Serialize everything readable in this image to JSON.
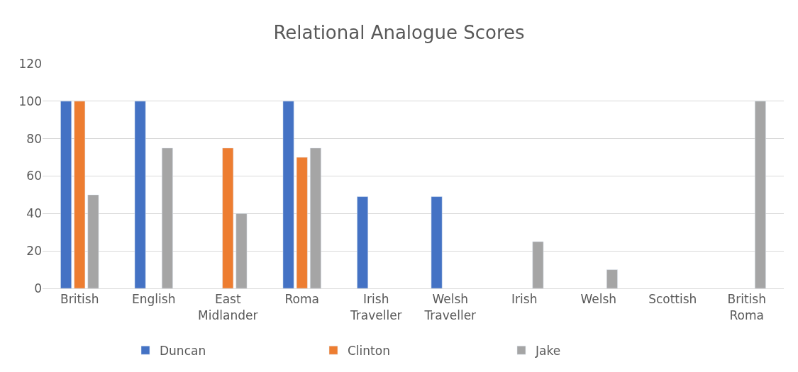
{
  "chart_data": {
    "type": "bar",
    "title": "Relational Analogue Scores",
    "categories": [
      "British",
      "English",
      "East Midlander",
      "Roma",
      "Irish Traveller",
      "Welsh Traveller",
      "Irish",
      "Welsh",
      "Scottish",
      "British Roma"
    ],
    "series": [
      {
        "name": "Duncan",
        "color": "#4472c4",
        "values": [
          100,
          100,
          null,
          100,
          49,
          49,
          null,
          null,
          null,
          null
        ]
      },
      {
        "name": "Clinton",
        "color": "#ed7d31",
        "values": [
          100,
          null,
          75,
          70,
          null,
          null,
          null,
          null,
          null,
          null
        ]
      },
      {
        "name": "Jake",
        "color": "#a5a5a5",
        "values": [
          50,
          75,
          40,
          75,
          null,
          null,
          25,
          10,
          null,
          100
        ]
      }
    ],
    "ylim": [
      0,
      120
    ],
    "yticks": [
      0,
      20,
      40,
      60,
      80,
      100,
      120
    ],
    "grid": "y",
    "legend": "bottom"
  }
}
